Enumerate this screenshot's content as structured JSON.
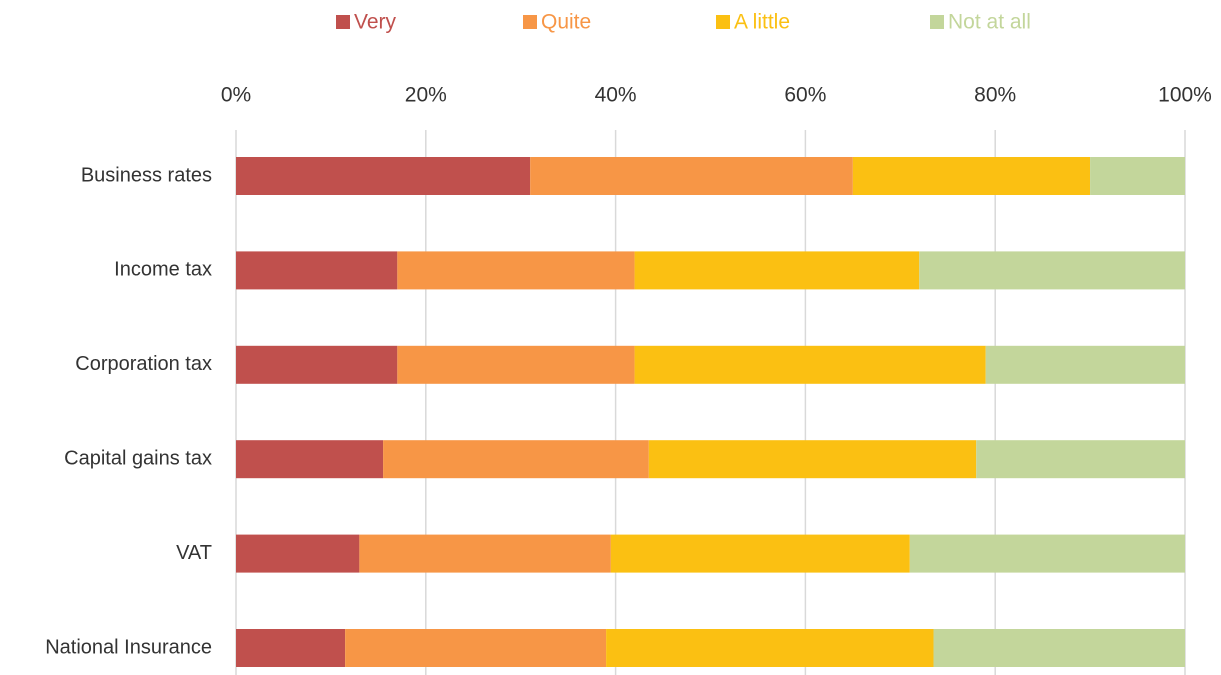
{
  "chart_data": {
    "type": "stacked-bar-horizontal",
    "categories": [
      "Business rates",
      "Income tax",
      "Corporation tax",
      "Capital gains tax",
      "VAT",
      "National Insurance"
    ],
    "series": [
      {
        "name": "Very",
        "color": "#c0504d",
        "values": [
          31,
          17,
          17,
          15.5,
          13,
          11.5
        ]
      },
      {
        "name": "Quite",
        "color": "#f79646",
        "values": [
          34,
          25,
          25,
          28,
          26.5,
          27.5
        ]
      },
      {
        "name": "A little",
        "color": "#fbc012",
        "values": [
          25,
          30,
          37,
          34.5,
          31.5,
          34.5
        ]
      },
      {
        "name": "Not at all",
        "color": "#c3d69b",
        "values": [
          10,
          28,
          21,
          22,
          29,
          26.5
        ]
      }
    ],
    "xlim": [
      0,
      100
    ],
    "xticks": [
      {
        "value": 0,
        "label": "0%"
      },
      {
        "value": 20,
        "label": "20%"
      },
      {
        "value": 40,
        "label": "40%"
      },
      {
        "value": 60,
        "label": "60%"
      },
      {
        "value": 80,
        "label": "80%"
      },
      {
        "value": 100,
        "label": "100%"
      }
    ],
    "grid": true,
    "legend": "top"
  }
}
